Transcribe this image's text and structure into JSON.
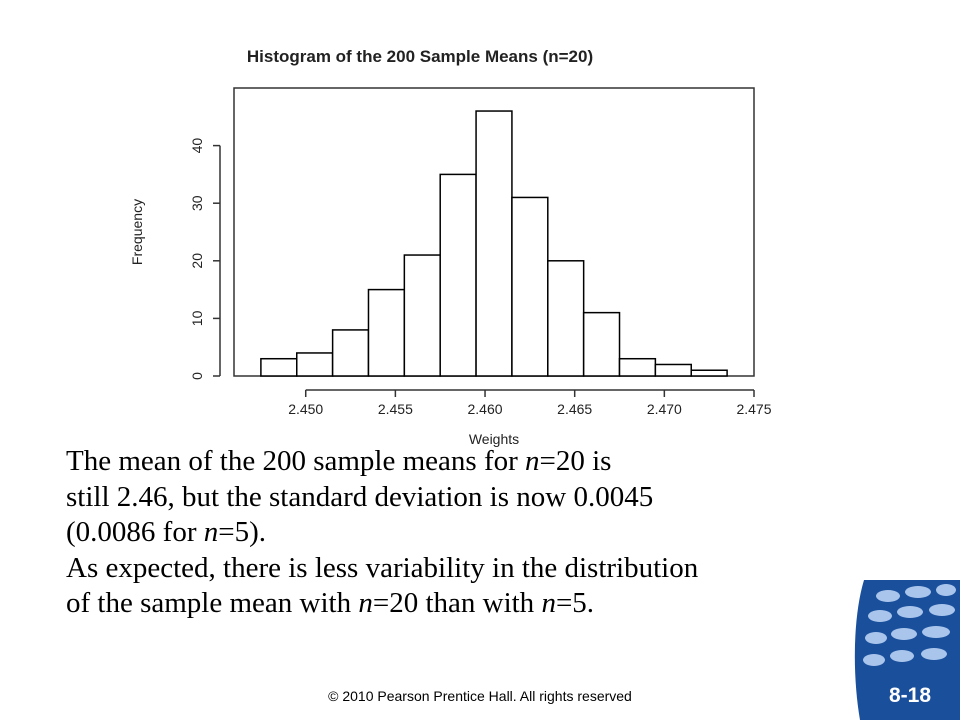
{
  "chart_data": {
    "type": "bar",
    "title": "Histogram of the 200 Sample Means (n=20)",
    "xlabel": "Weights",
    "ylabel": "Frequency",
    "bin_edges": [
      2.4475,
      2.4495,
      2.4515,
      2.4535,
      2.4555,
      2.4575,
      2.4595,
      2.4615,
      2.4635,
      2.4655,
      2.4675,
      2.4695,
      2.4715,
      2.4735
    ],
    "values": [
      3,
      4,
      8,
      15,
      21,
      35,
      46,
      31,
      20,
      11,
      3,
      2,
      1
    ],
    "xlim": [
      2.446,
      2.475
    ],
    "ylim": [
      0,
      50
    ],
    "x_ticks": [
      "2.450",
      "2.455",
      "2.460",
      "2.465",
      "2.470",
      "2.475"
    ],
    "y_ticks": [
      "0",
      "10",
      "20",
      "30",
      "40"
    ],
    "grid": false
  },
  "text": {
    "p1_a": "The mean of the 200 sample means for ",
    "p1_n": "n",
    "p1_b": "=20 is",
    "p2_a": "still 2.46, but the standard deviation is now 0.0045",
    "p3_a": "(0.0086 for ",
    "p3_n": "n",
    "p3_b": "=5).",
    "p4_a": "As expected, there is less variability in the distribution",
    "p5_a": "of the sample mean with ",
    "p5_n1": "n",
    "p5_b": "=20 than with ",
    "p5_n2": "n",
    "p5_c": "=5."
  },
  "footer": "© 2010 Pearson Prentice Hall. All rights reserved",
  "slide_number": "8-18",
  "colors": {
    "logo_blue": "#1a4f9c",
    "logo_light": "#a9c5ec"
  }
}
